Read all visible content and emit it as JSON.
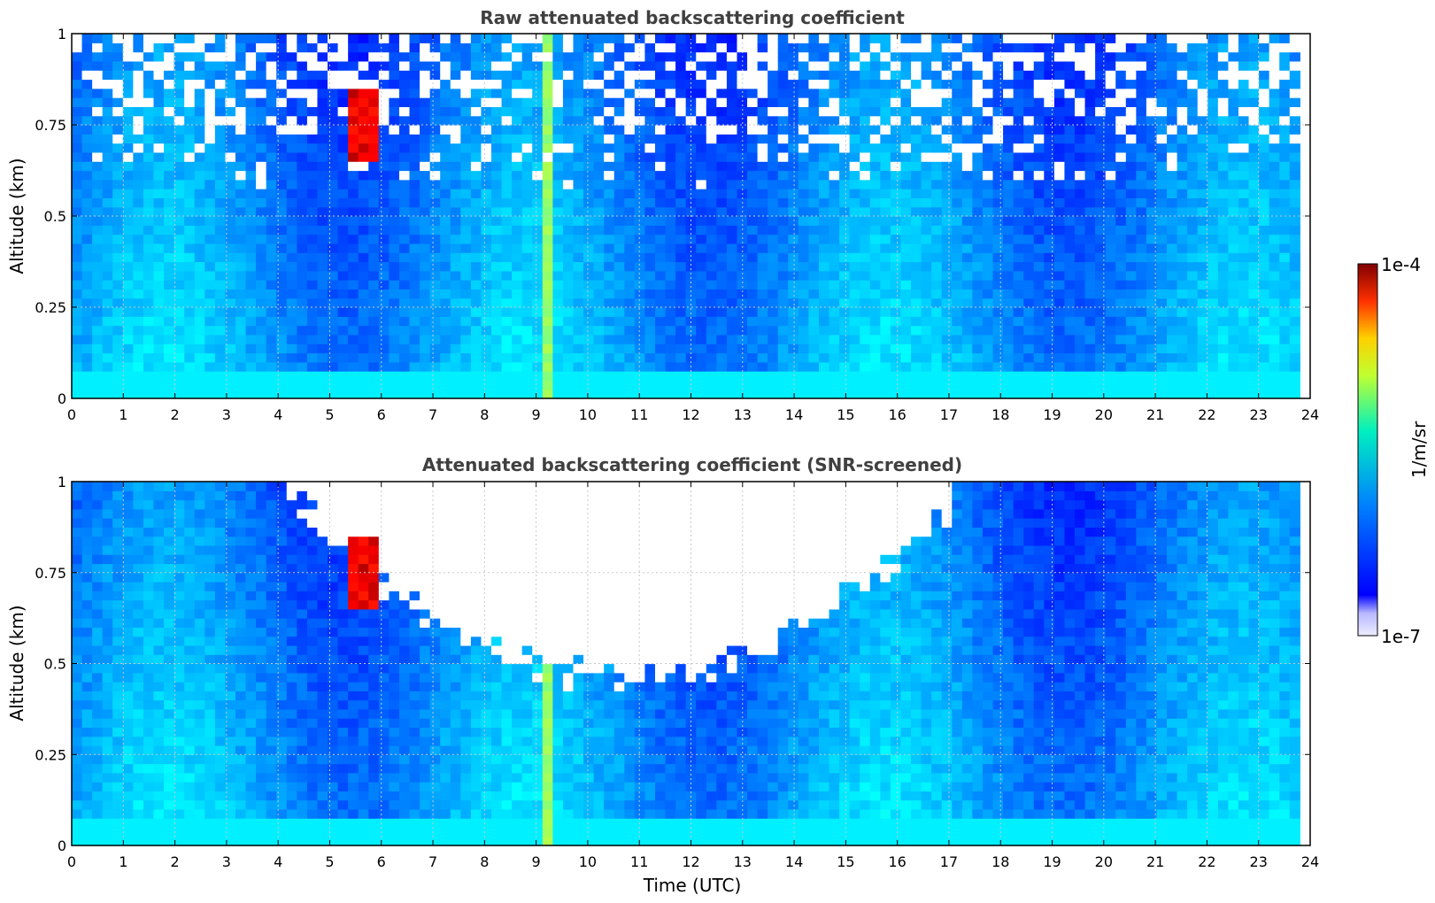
{
  "chart_data": [
    {
      "type": "heatmap",
      "title": "Raw attenuated backscattering coefficient",
      "xlabel": "",
      "ylabel": "Altitude (km)",
      "xlim": [
        0,
        24
      ],
      "ylim": [
        0,
        1
      ],
      "xticks": [
        0,
        1,
        2,
        3,
        4,
        5,
        6,
        7,
        8,
        9,
        10,
        11,
        12,
        13,
        14,
        15,
        16,
        17,
        18,
        19,
        20,
        21,
        22,
        23,
        24
      ],
      "yticks": [
        0,
        0.25,
        0.5,
        0.75,
        1
      ],
      "ytick_labels": [
        "0",
        "0.25",
        "0.5",
        "0.75",
        "1"
      ],
      "data_xlim": [
        0,
        23.8
      ],
      "grid": true,
      "screened": false,
      "features": {
        "vertical_streak_time": 9.3,
        "strong_echo": {
          "time": 5.5,
          "alt_range": [
            0.65,
            0.85
          ]
        }
      }
    },
    {
      "type": "heatmap",
      "title": "Attenuated backscattering coefficient (SNR-screened)",
      "xlabel": "Time (UTC)",
      "ylabel": "Altitude (km)",
      "xlim": [
        0,
        24
      ],
      "ylim": [
        0,
        1
      ],
      "xticks": [
        0,
        1,
        2,
        3,
        4,
        5,
        6,
        7,
        8,
        9,
        10,
        11,
        12,
        13,
        14,
        15,
        16,
        17,
        18,
        19,
        20,
        21,
        22,
        23,
        24
      ],
      "yticks": [
        0,
        0.25,
        0.5,
        0.75,
        1
      ],
      "ytick_labels": [
        "0",
        "0.25",
        "0.5",
        "0.75",
        "1"
      ],
      "data_xlim": [
        0,
        23.8
      ],
      "grid": true,
      "screened": true,
      "features": {
        "vertical_streak_time": 9.3,
        "strong_echo": {
          "time": 5.5,
          "alt_range": [
            0.65,
            0.85
          ]
        },
        "screened_region": {
          "time_range": [
            3.9,
            17.4
          ],
          "lowest_alt": 0.45
        }
      }
    }
  ],
  "colorbar": {
    "label": "1/m/sr",
    "min_label": "1e-7",
    "max_label": "1e-4",
    "scale": "log",
    "colormap": "jet",
    "orientation": "vertical",
    "placement": "right"
  }
}
